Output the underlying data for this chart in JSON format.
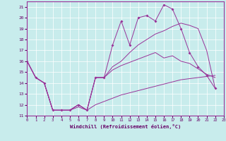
{
  "xlabel": "Windchill (Refroidissement éolien,°C)",
  "xlim": [
    0,
    23
  ],
  "ylim": [
    11,
    21.5
  ],
  "xticks": [
    0,
    1,
    2,
    3,
    4,
    5,
    6,
    7,
    8,
    9,
    10,
    11,
    12,
    13,
    14,
    15,
    16,
    17,
    18,
    19,
    20,
    21,
    22,
    23
  ],
  "yticks": [
    11,
    12,
    13,
    14,
    15,
    16,
    17,
    18,
    19,
    20,
    21
  ],
  "bg_color": "#c8ecec",
  "line_color": "#993399",
  "grid_color": "#ffffff",
  "line_spiky_x": [
    0,
    1,
    2,
    3,
    4,
    5,
    6,
    7,
    8,
    9,
    10,
    11,
    12,
    13,
    14,
    15,
    16,
    17,
    18,
    19,
    20,
    21,
    22
  ],
  "line_spiky_y": [
    16.0,
    14.5,
    14.0,
    11.5,
    11.5,
    11.5,
    12.0,
    11.5,
    14.5,
    14.5,
    17.5,
    19.7,
    17.5,
    20.0,
    20.2,
    19.7,
    21.2,
    20.8,
    19.0,
    16.8,
    15.5,
    14.7,
    13.5
  ],
  "line_upper_x": [
    0,
    1,
    2,
    3,
    4,
    5,
    6,
    7,
    8,
    9,
    10,
    11,
    12,
    13,
    14,
    15,
    16,
    17,
    18,
    19,
    20,
    21,
    22
  ],
  "line_upper_y": [
    16.0,
    14.5,
    14.0,
    11.5,
    11.5,
    11.5,
    12.0,
    11.5,
    14.5,
    14.5,
    15.5,
    16.0,
    16.8,
    17.5,
    18.0,
    18.5,
    18.8,
    19.2,
    19.5,
    19.3,
    19.0,
    17.0,
    13.5
  ],
  "line_middle_x": [
    0,
    1,
    2,
    3,
    4,
    5,
    6,
    7,
    8,
    9,
    10,
    11,
    12,
    13,
    14,
    15,
    16,
    17,
    18,
    19,
    20,
    21,
    22
  ],
  "line_middle_y": [
    16.0,
    14.5,
    14.0,
    11.5,
    11.5,
    11.5,
    12.0,
    11.5,
    14.5,
    14.5,
    15.2,
    15.6,
    15.9,
    16.2,
    16.5,
    16.8,
    16.3,
    16.5,
    16.0,
    15.8,
    15.3,
    14.8,
    14.5
  ],
  "line_lower_x": [
    0,
    1,
    2,
    3,
    4,
    5,
    6,
    7,
    8,
    9,
    10,
    11,
    12,
    13,
    14,
    15,
    16,
    17,
    18,
    19,
    20,
    21,
    22
  ],
  "line_lower_y": [
    16.0,
    14.5,
    14.0,
    11.5,
    11.5,
    11.5,
    11.8,
    11.5,
    12.0,
    12.3,
    12.6,
    12.9,
    13.1,
    13.3,
    13.5,
    13.7,
    13.9,
    14.1,
    14.3,
    14.4,
    14.5,
    14.6,
    14.7
  ]
}
